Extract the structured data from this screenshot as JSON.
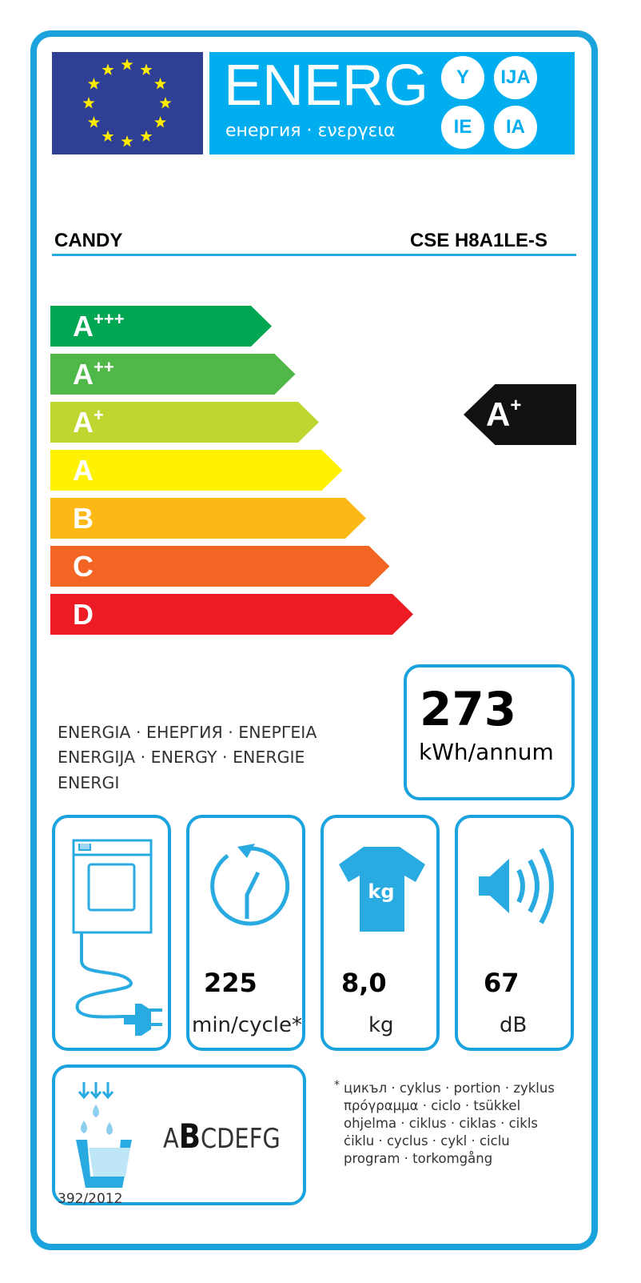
{
  "header": {
    "title": "ENERG",
    "subtitle": "енергия · ενεργεια",
    "suffixes": [
      "Y",
      "IJA",
      "IE",
      "IA"
    ]
  },
  "supplier": "CANDY",
  "model": "CSE H8A1LE-S",
  "scale": [
    {
      "label": "A",
      "sup": "+++",
      "color": "#00a651"
    },
    {
      "label": "A",
      "sup": "++",
      "color": "#50b848"
    },
    {
      "label": "A",
      "sup": "+",
      "color": "#bed62f"
    },
    {
      "label": "A",
      "sup": "",
      "color": "#fff200"
    },
    {
      "label": "B",
      "sup": "",
      "color": "#fcb814"
    },
    {
      "label": "C",
      "sup": "",
      "color": "#f26522"
    },
    {
      "label": "D",
      "sup": "",
      "color": "#ed1c24"
    }
  ],
  "rating": {
    "label": "A",
    "sup": "+"
  },
  "energy": {
    "value": "273",
    "unit": "kWh/annum",
    "lines": [
      "ENERGIA · ЕНЕРГИЯ · ΕΝΕΡΓΕΙΑ",
      "ENERGIJA · ENERGY · ENERGIE",
      "ENERGI"
    ]
  },
  "specs": {
    "dryer_type_icon": "vented-dryer-plug-icon",
    "cycle": {
      "value": "225",
      "unit": "min/cycle*",
      "icon": "clock-icon"
    },
    "capacity": {
      "value": "8,0",
      "unit": "kg",
      "icon": "tshirt-kg-icon",
      "icon_text": "kg"
    },
    "noise": {
      "value": "67",
      "unit": "dB",
      "icon": "speaker-icon"
    }
  },
  "condensation": {
    "classes": "ABCDEFG",
    "selected": "B",
    "icon": "water-basin-icon"
  },
  "footnote": {
    "mark": "*",
    "lines": [
      "цикъл · cyklus · portion · zyklus",
      "πρόγραμμα · ciclo · tsükkel",
      "ohjelma · ciklus · ciklas · cikls",
      "ċiklu · cyclus · cykl · ciclu",
      "program · torkomgång"
    ]
  },
  "regulation": "392/2012"
}
